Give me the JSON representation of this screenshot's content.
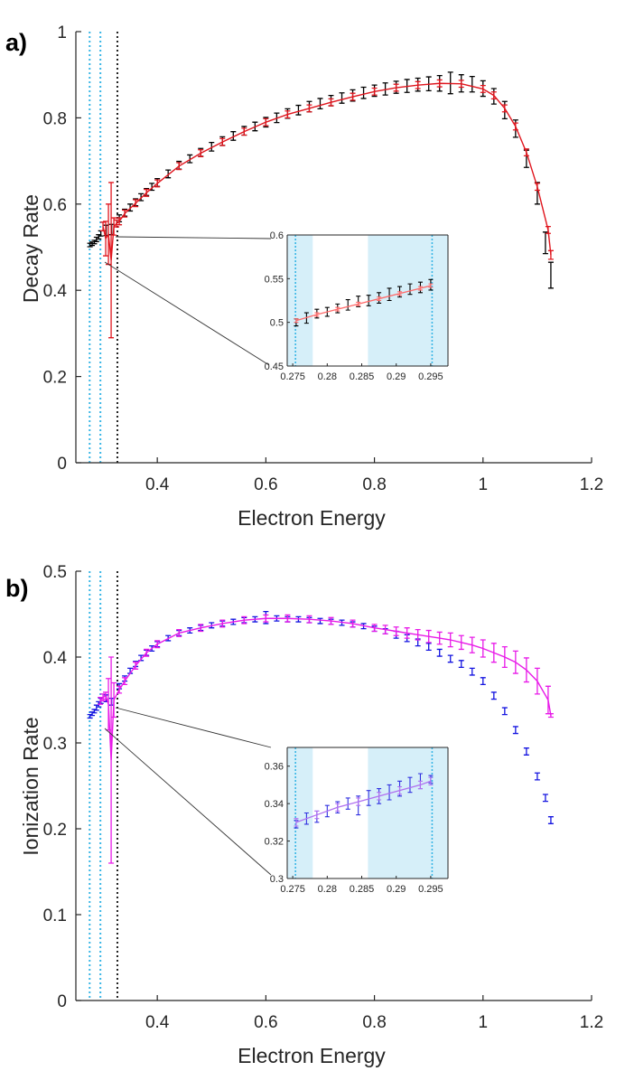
{
  "chart_data": [
    {
      "panel_label": "a)",
      "type": "line",
      "xlabel": "Electron Energy",
      "ylabel": "Decay Rate",
      "xlim": [
        0.25,
        1.2
      ],
      "ylim": [
        0,
        1
      ],
      "xticks": [
        "0.4",
        "0.6",
        "0.8",
        "1",
        "1.2"
      ],
      "yticks": [
        "0",
        "0.2",
        "0.4",
        "0.6",
        "0.8",
        "1"
      ],
      "vlines": [
        {
          "x": 0.2754,
          "color": "#39b6e6"
        },
        {
          "x": 0.2952,
          "color": "#39b6e6"
        },
        {
          "x": 0.3265,
          "color": "#222222"
        }
      ],
      "series": [
        {
          "name": "data",
          "color": "#000000",
          "line": false,
          "x": [
            0.276,
            0.28,
            0.284,
            0.288,
            0.292,
            0.296,
            0.306,
            0.316,
            0.33,
            0.34,
            0.35,
            0.36,
            0.37,
            0.38,
            0.39,
            0.4,
            0.42,
            0.44,
            0.46,
            0.48,
            0.5,
            0.52,
            0.54,
            0.56,
            0.58,
            0.6,
            0.62,
            0.64,
            0.66,
            0.68,
            0.7,
            0.72,
            0.74,
            0.76,
            0.78,
            0.8,
            0.82,
            0.84,
            0.86,
            0.88,
            0.9,
            0.92,
            0.94,
            0.96,
            0.98,
            1.0,
            1.02,
            1.04,
            1.06,
            1.08,
            1.1,
            1.115,
            1.125
          ],
          "y": [
            0.505,
            0.508,
            0.512,
            0.518,
            0.524,
            0.532,
            0.539,
            0.541,
            0.567,
            0.58,
            0.592,
            0.604,
            0.616,
            0.628,
            0.64,
            0.65,
            0.67,
            0.69,
            0.705,
            0.72,
            0.733,
            0.746,
            0.758,
            0.77,
            0.78,
            0.79,
            0.8,
            0.81,
            0.818,
            0.826,
            0.833,
            0.84,
            0.846,
            0.852,
            0.858,
            0.863,
            0.867,
            0.871,
            0.874,
            0.877,
            0.879,
            0.88,
            0.881,
            0.88,
            0.878,
            0.868,
            0.85,
            0.818,
            0.775,
            0.705,
            0.625,
            0.51,
            0.435
          ],
          "err": [
            0.004,
            0.004,
            0.004,
            0.005,
            0.005,
            0.006,
            0.012,
            0.012,
            0.008,
            0.008,
            0.008,
            0.008,
            0.008,
            0.008,
            0.008,
            0.009,
            0.009,
            0.009,
            0.009,
            0.009,
            0.01,
            0.01,
            0.01,
            0.01,
            0.01,
            0.011,
            0.011,
            0.011,
            0.011,
            0.012,
            0.012,
            0.012,
            0.012,
            0.013,
            0.013,
            0.013,
            0.014,
            0.014,
            0.015,
            0.015,
            0.016,
            0.018,
            0.025,
            0.02,
            0.018,
            0.018,
            0.018,
            0.02,
            0.02,
            0.02,
            0.025,
            0.025,
            0.03
          ]
        },
        {
          "name": "fit",
          "color": "#e0161e",
          "line": true,
          "x": [
            0.3,
            0.305,
            0.31,
            0.315,
            0.32,
            0.325,
            0.33,
            0.34,
            0.36,
            0.38,
            0.4,
            0.44,
            0.48,
            0.52,
            0.56,
            0.6,
            0.64,
            0.68,
            0.72,
            0.76,
            0.8,
            0.84,
            0.88,
            0.92,
            0.96,
            1.0,
            1.02,
            1.04,
            1.06,
            1.08,
            1.1,
            1.12,
            1.125
          ],
          "y": [
            0.548,
            0.52,
            0.53,
            0.47,
            0.548,
            0.555,
            0.56,
            0.578,
            0.602,
            0.626,
            0.648,
            0.688,
            0.718,
            0.744,
            0.768,
            0.79,
            0.808,
            0.822,
            0.836,
            0.849,
            0.861,
            0.87,
            0.876,
            0.88,
            0.879,
            0.867,
            0.852,
            0.822,
            0.78,
            0.72,
            0.64,
            0.54,
            0.482
          ],
          "err": [
            0.01,
            0.04,
            0.07,
            0.18,
            0.02,
            0.008,
            0.008,
            0.008,
            0.008,
            0.008,
            0.008,
            0.008,
            0.008,
            0.008,
            0.008,
            0.008,
            0.008,
            0.008,
            0.008,
            0.008,
            0.008,
            0.008,
            0.008,
            0.008,
            0.008,
            0.008,
            0.008,
            0.008,
            0.008,
            0.008,
            0.008,
            0.008,
            0.01
          ]
        }
      ],
      "inset": {
        "xlim": [
          0.2742,
          0.2975
        ],
        "ylim": [
          0.45,
          0.6
        ],
        "xticks": [
          "0.275",
          "0.28",
          "0.285",
          "0.29",
          "0.295"
        ],
        "yticks": [
          "0.45",
          "0.5",
          "0.55",
          "0.6"
        ],
        "shaded_ranges": [
          [
            0.2742,
            0.2779
          ],
          [
            0.2859,
            0.2975
          ]
        ],
        "vlines": [
          0.2754,
          0.2952
        ],
        "series": [
          {
            "name": "data",
            "color": "#000000",
            "line": false,
            "x": [
              0.2755,
              0.277,
              0.2785,
              0.28,
              0.2815,
              0.283,
              0.2845,
              0.286,
              0.2875,
              0.289,
              0.2905,
              0.292,
              0.2935,
              0.295
            ],
            "y": [
              0.5,
              0.505,
              0.51,
              0.512,
              0.516,
              0.52,
              0.524,
              0.525,
              0.528,
              0.532,
              0.535,
              0.538,
              0.54,
              0.543
            ],
            "err": [
              0.004,
              0.006,
              0.005,
              0.005,
              0.005,
              0.006,
              0.006,
              0.006,
              0.006,
              0.007,
              0.006,
              0.006,
              0.006,
              0.006
            ]
          },
          {
            "name": "fit",
            "color": "#ff6a6a",
            "line": true,
            "x": [
              0.2755,
              0.2785,
              0.2815,
              0.2845,
              0.2875,
              0.2905,
              0.2935,
              0.295
            ],
            "y": [
              0.502,
              0.509,
              0.515,
              0.521,
              0.527,
              0.533,
              0.539,
              0.542
            ],
            "err": [
              0.002,
              0.002,
              0.002,
              0.002,
              0.002,
              0.002,
              0.002,
              0.002
            ]
          }
        ]
      }
    },
    {
      "panel_label": "b)",
      "type": "line",
      "xlabel": "Electron Energy",
      "ylabel": "Ionization Rate",
      "xlim": [
        0.25,
        1.2
      ],
      "ylim": [
        0,
        0.5
      ],
      "xticks": [
        "0.4",
        "0.6",
        "0.8",
        "1",
        "1.2"
      ],
      "yticks": [
        "0",
        "0.1",
        "0.2",
        "0.3",
        "0.4",
        "0.5"
      ],
      "vlines": [
        {
          "x": 0.2754,
          "color": "#39b6e6"
        },
        {
          "x": 0.2952,
          "color": "#39b6e6"
        },
        {
          "x": 0.3265,
          "color": "#222222"
        }
      ],
      "series": [
        {
          "name": "data",
          "color": "#1414e0",
          "line": false,
          "x": [
            0.276,
            0.28,
            0.284,
            0.288,
            0.292,
            0.296,
            0.306,
            0.316,
            0.33,
            0.34,
            0.35,
            0.36,
            0.37,
            0.38,
            0.39,
            0.4,
            0.42,
            0.44,
            0.46,
            0.48,
            0.5,
            0.52,
            0.54,
            0.56,
            0.58,
            0.6,
            0.62,
            0.64,
            0.66,
            0.68,
            0.7,
            0.72,
            0.74,
            0.76,
            0.78,
            0.8,
            0.82,
            0.84,
            0.86,
            0.88,
            0.9,
            0.92,
            0.94,
            0.96,
            0.98,
            1.0,
            1.02,
            1.04,
            1.06,
            1.08,
            1.1,
            1.115,
            1.125
          ],
          "y": [
            0.331,
            0.334,
            0.337,
            0.341,
            0.345,
            0.349,
            0.352,
            0.348,
            0.366,
            0.375,
            0.384,
            0.392,
            0.399,
            0.405,
            0.41,
            0.415,
            0.422,
            0.428,
            0.431,
            0.434,
            0.437,
            0.439,
            0.441,
            0.443,
            0.444,
            0.446,
            0.445,
            0.444,
            0.444,
            0.443,
            0.442,
            0.441,
            0.44,
            0.438,
            0.436,
            0.433,
            0.43,
            0.426,
            0.422,
            0.417,
            0.412,
            0.405,
            0.398,
            0.392,
            0.383,
            0.372,
            0.355,
            0.337,
            0.315,
            0.29,
            0.261,
            0.236,
            0.21
          ],
          "err": [
            0.002,
            0.002,
            0.002,
            0.003,
            0.003,
            0.003,
            0.004,
            0.004,
            0.003,
            0.003,
            0.003,
            0.003,
            0.003,
            0.003,
            0.003,
            0.003,
            0.003,
            0.003,
            0.003,
            0.003,
            0.003,
            0.003,
            0.003,
            0.003,
            0.003,
            0.007,
            0.003,
            0.003,
            0.003,
            0.003,
            0.003,
            0.003,
            0.003,
            0.003,
            0.003,
            0.003,
            0.003,
            0.004,
            0.004,
            0.004,
            0.004,
            0.004,
            0.004,
            0.004,
            0.004,
            0.004,
            0.004,
            0.004,
            0.004,
            0.004,
            0.004,
            0.004,
            0.004
          ]
        },
        {
          "name": "fit",
          "color": "#e81ae8",
          "line": true,
          "x": [
            0.295,
            0.3,
            0.305,
            0.31,
            0.315,
            0.32,
            0.33,
            0.34,
            0.36,
            0.38,
            0.4,
            0.44,
            0.48,
            0.52,
            0.56,
            0.6,
            0.64,
            0.68,
            0.72,
            0.76,
            0.8,
            0.82,
            0.84,
            0.86,
            0.88,
            0.9,
            0.92,
            0.94,
            0.96,
            0.98,
            1.0,
            1.02,
            1.04,
            1.06,
            1.08,
            1.1,
            1.12,
            1.125
          ],
          "y": [
            0.349,
            0.353,
            0.355,
            0.345,
            0.28,
            0.35,
            0.362,
            0.372,
            0.39,
            0.405,
            0.415,
            0.428,
            0.434,
            0.439,
            0.443,
            0.445,
            0.445,
            0.444,
            0.442,
            0.439,
            0.434,
            0.432,
            0.43,
            0.428,
            0.426,
            0.424,
            0.422,
            0.42,
            0.417,
            0.414,
            0.41,
            0.405,
            0.4,
            0.394,
            0.385,
            0.372,
            0.35,
            0.332
          ],
          "err": [
            0.004,
            0.004,
            0.004,
            0.03,
            0.12,
            0.02,
            0.004,
            0.004,
            0.004,
            0.004,
            0.004,
            0.004,
            0.004,
            0.004,
            0.004,
            0.004,
            0.004,
            0.004,
            0.004,
            0.004,
            0.004,
            0.005,
            0.005,
            0.006,
            0.006,
            0.007,
            0.007,
            0.008,
            0.008,
            0.009,
            0.01,
            0.011,
            0.012,
            0.013,
            0.014,
            0.015,
            0.016,
            0.002
          ]
        }
      ],
      "inset": {
        "xlim": [
          0.2742,
          0.2975
        ],
        "ylim": [
          0.3,
          0.37
        ],
        "xticks": [
          "0.275",
          "0.28",
          "0.285",
          "0.29",
          "0.295"
        ],
        "yticks": [
          "0.3",
          "0.32",
          "0.34",
          "0.36"
        ],
        "shaded_ranges": [
          [
            0.2742,
            0.2779
          ],
          [
            0.2859,
            0.2975
          ]
        ],
        "vlines": [
          0.2754,
          0.2952
        ],
        "series": [
          {
            "name": "data",
            "color": "#3030e0",
            "line": false,
            "x": [
              0.2755,
              0.277,
              0.2785,
              0.28,
              0.2815,
              0.283,
              0.2845,
              0.286,
              0.2875,
              0.289,
              0.2905,
              0.292,
              0.2935,
              0.295
            ],
            "y": [
              0.329,
              0.332,
              0.333,
              0.336,
              0.338,
              0.34,
              0.339,
              0.343,
              0.344,
              0.346,
              0.348,
              0.35,
              0.352,
              0.353
            ],
            "err": [
              0.002,
              0.003,
              0.003,
              0.003,
              0.003,
              0.003,
              0.005,
              0.004,
              0.004,
              0.004,
              0.004,
              0.004,
              0.004,
              0.002
            ]
          },
          {
            "name": "fit",
            "color": "#b070f0",
            "line": true,
            "x": [
              0.2755,
              0.2785,
              0.2815,
              0.2845,
              0.2875,
              0.2905,
              0.2935,
              0.295
            ],
            "y": [
              0.33,
              0.334,
              0.338,
              0.341,
              0.344,
              0.347,
              0.35,
              0.352
            ],
            "err": [
              0.002,
              0.002,
              0.002,
              0.002,
              0.002,
              0.002,
              0.002,
              0.002
            ]
          }
        ]
      }
    }
  ]
}
